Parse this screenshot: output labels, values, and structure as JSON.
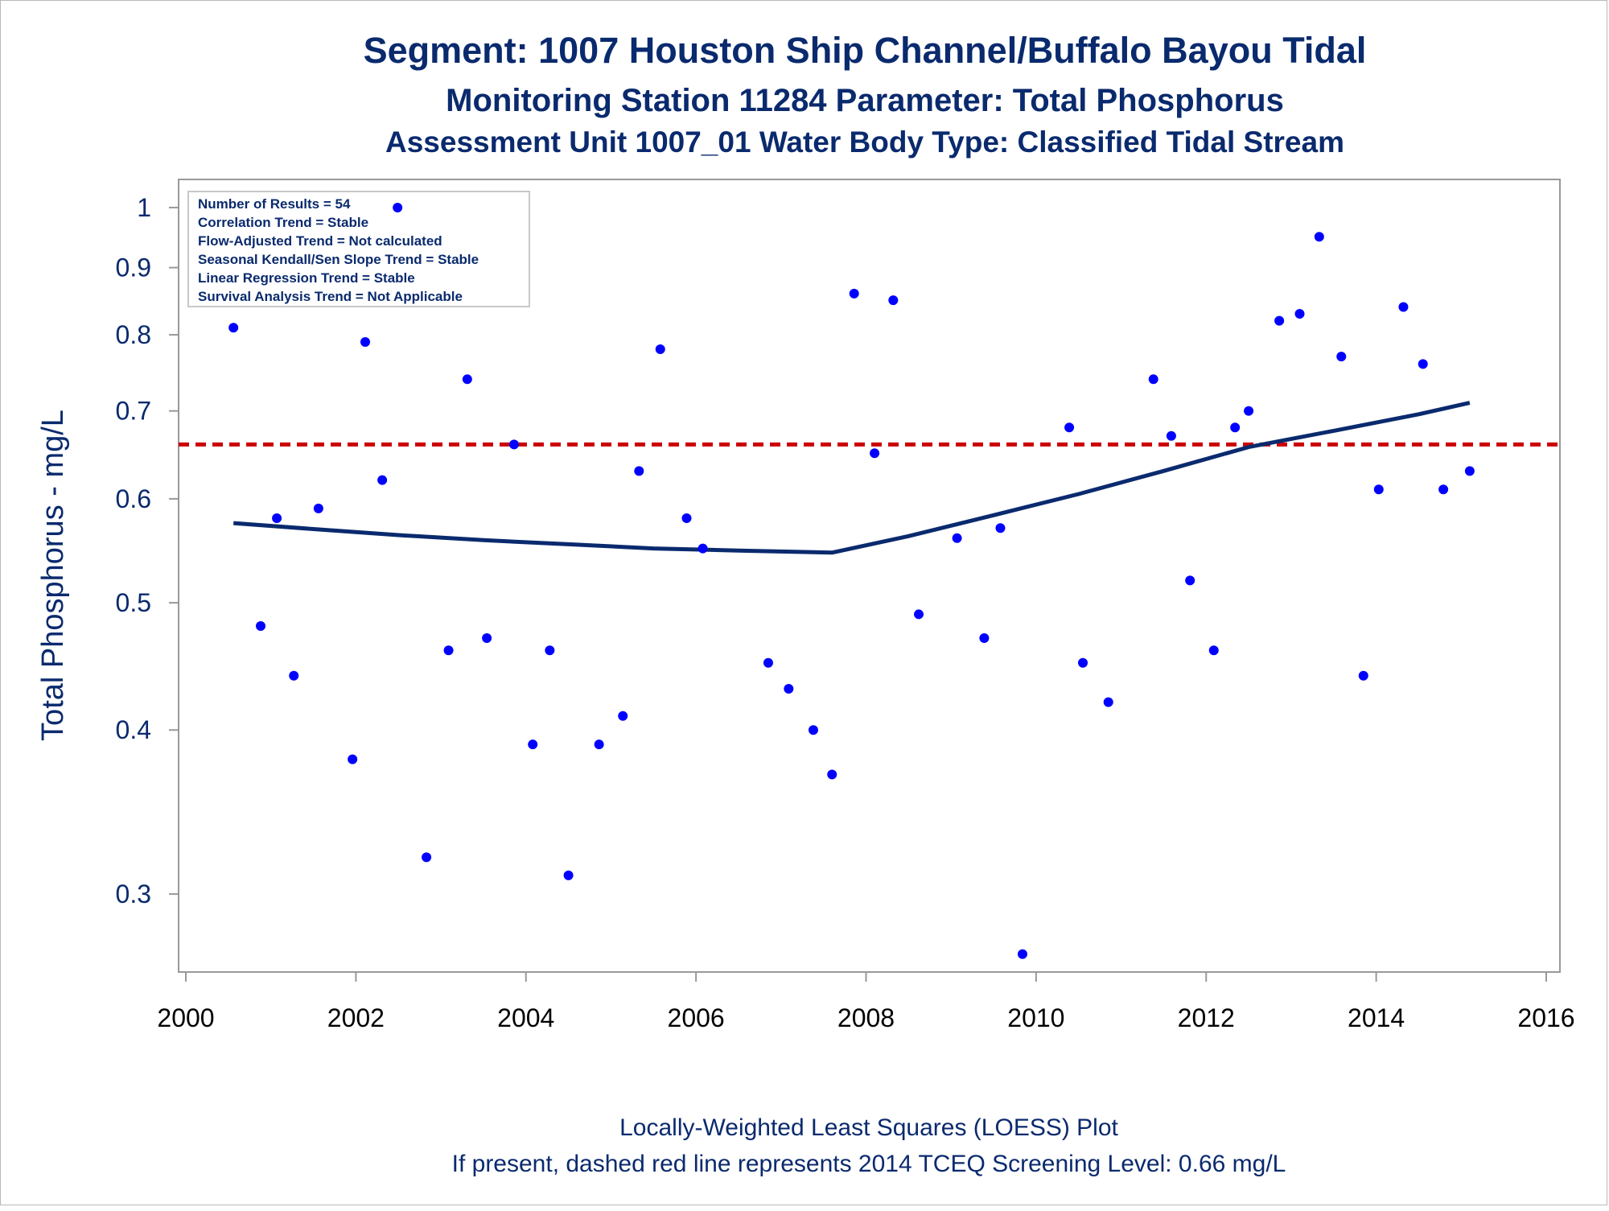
{
  "titles": {
    "line1": "Segment: 1007  Houston Ship Channel/Buffalo Bayou Tidal",
    "line2": "Monitoring Station 11284 Parameter: Total Phosphorus",
    "line3": "Assessment Unit 1007_01   Water Body Type: Classified Tidal Stream"
  },
  "footnotes": {
    "line1": "Locally-Weighted Least Squares (LOESS) Plot",
    "line2": "If present, dashed red line represents 2014 TCEQ Screening Level: 0.66 mg/L"
  },
  "inset": {
    "lines": [
      "Number of Results = 54",
      "Correlation Trend = Stable",
      "Flow-Adjusted Trend = Not calculated",
      "Seasonal Kendall/Sen Slope Trend = Stable",
      "Linear Regression Trend = Stable",
      "Survival Analysis Trend = Not Applicable"
    ]
  },
  "colors": {
    "points": "#0000ff",
    "loess": "#0a2a6e",
    "screening": "#cc0000",
    "text": "#0a2a6e",
    "frame": "#999999"
  },
  "chart_data": {
    "type": "scatter",
    "title": "Segment: 1007  Houston Ship Channel/Buffalo Bayou Tidal",
    "xlabel": "",
    "ylabel": "Total Phosphorus - mg/L",
    "y_scale": "log",
    "xlim": [
      2000,
      2016
    ],
    "ylim": [
      0.265,
      1.03
    ],
    "x_ticks": [
      2000,
      2002,
      2004,
      2006,
      2008,
      2010,
      2012,
      2014,
      2016
    ],
    "x_tick_labels": [
      "2000",
      "2002",
      "2004",
      "2006",
      "2008",
      "2010",
      "2012",
      "2014",
      "2016"
    ],
    "y_ticks": [
      0.3,
      0.4,
      0.5,
      0.6,
      0.7,
      0.8,
      0.9,
      1.0
    ],
    "y_tick_labels": [
      "0.3",
      "0.4",
      "0.5",
      "0.6",
      "0.7",
      "0.8",
      "0.9",
      "1"
    ],
    "grid": false,
    "screening_level": 0.66,
    "series": [
      {
        "type": "scatter",
        "points": [
          [
            2000.56,
            0.81
          ],
          [
            2000.88,
            0.48
          ],
          [
            2001.07,
            0.58
          ],
          [
            2001.27,
            0.44
          ],
          [
            2001.56,
            0.59
          ],
          [
            2001.96,
            0.38
          ],
          [
            2002.11,
            0.79
          ],
          [
            2002.31,
            0.62
          ],
          [
            2002.49,
            1.0
          ],
          [
            2002.83,
            0.32
          ],
          [
            2003.09,
            0.46
          ],
          [
            2003.31,
            0.74
          ],
          [
            2003.54,
            0.47
          ],
          [
            2003.86,
            0.66
          ],
          [
            2004.08,
            0.39
          ],
          [
            2004.28,
            0.46
          ],
          [
            2004.5,
            0.31
          ],
          [
            2004.86,
            0.39
          ],
          [
            2005.14,
            0.41
          ],
          [
            2005.33,
            0.63
          ],
          [
            2005.58,
            0.78
          ],
          [
            2005.89,
            0.58
          ],
          [
            2006.08,
            0.55
          ],
          [
            2006.85,
            0.45
          ],
          [
            2007.09,
            0.43
          ],
          [
            2007.38,
            0.4
          ],
          [
            2007.6,
            0.37
          ],
          [
            2007.86,
            0.86
          ],
          [
            2008.1,
            0.65
          ],
          [
            2008.32,
            0.85
          ],
          [
            2008.62,
            0.49
          ],
          [
            2009.07,
            0.56
          ],
          [
            2009.39,
            0.47
          ],
          [
            2009.58,
            0.57
          ],
          [
            2009.84,
            0.27
          ],
          [
            2010.39,
            0.68
          ],
          [
            2010.55,
            0.45
          ],
          [
            2010.85,
            0.42
          ],
          [
            2011.38,
            0.74
          ],
          [
            2011.59,
            0.67
          ],
          [
            2011.81,
            0.52
          ],
          [
            2012.09,
            0.46
          ],
          [
            2012.34,
            0.68
          ],
          [
            2012.5,
            0.7
          ],
          [
            2012.86,
            0.82
          ],
          [
            2013.1,
            0.83
          ],
          [
            2013.33,
            0.95
          ],
          [
            2013.59,
            0.77
          ],
          [
            2013.85,
            0.44
          ],
          [
            2014.03,
            0.61
          ],
          [
            2014.32,
            0.84
          ],
          [
            2014.55,
            0.76
          ],
          [
            2014.79,
            0.61
          ],
          [
            2015.1,
            0.63
          ]
        ]
      },
      {
        "type": "line",
        "points": [
          [
            2000.56,
            0.575
          ],
          [
            2001.5,
            0.569
          ],
          [
            2002.5,
            0.563
          ],
          [
            2003.5,
            0.558
          ],
          [
            2004.5,
            0.554
          ],
          [
            2005.5,
            0.55
          ],
          [
            2006.5,
            0.548
          ],
          [
            2007.6,
            0.546
          ],
          [
            2008.5,
            0.562
          ],
          [
            2009.5,
            0.583
          ],
          [
            2010.5,
            0.605
          ],
          [
            2011.5,
            0.63
          ],
          [
            2012.5,
            0.657
          ],
          [
            2013.5,
            0.676
          ],
          [
            2014.5,
            0.696
          ],
          [
            2015.1,
            0.71
          ]
        ]
      }
    ]
  }
}
